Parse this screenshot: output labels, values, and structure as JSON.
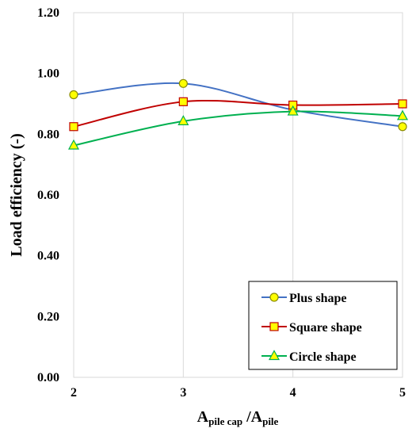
{
  "chart_data": {
    "type": "line",
    "x": [
      2,
      3,
      4,
      5
    ],
    "series": [
      {
        "name": "Plus shape",
        "values": [
          0.93,
          0.967,
          0.88,
          0.825
        ],
        "line_color": "#4472C4",
        "marker": "circle",
        "marker_fill": "#FFFF00",
        "marker_stroke": "#8C8C00"
      },
      {
        "name": "Square shape",
        "values": [
          0.825,
          0.907,
          0.896,
          0.9
        ],
        "line_color": "#C00000",
        "marker": "square",
        "marker_fill": "#FFFF00",
        "marker_stroke": "#C00000"
      },
      {
        "name": "Circle shape",
        "values": [
          0.763,
          0.843,
          0.875,
          0.86
        ],
        "line_color": "#00B050",
        "marker": "triangle",
        "marker_fill": "#FFFF00",
        "marker_stroke": "#00B050"
      }
    ],
    "xlabel": {
      "main1": "A",
      "sub1": "pile cap",
      "sep": " /A",
      "sub2": "pile"
    },
    "ylabel": "Load efficiency (-)",
    "ylim": [
      0,
      1.2
    ],
    "xlim": [
      2,
      5
    ],
    "yticks": [
      "0.00",
      "0.20",
      "0.40",
      "0.60",
      "0.80",
      "1.00",
      "1.20"
    ],
    "xticks": [
      "2",
      "3",
      "4",
      "5"
    ],
    "grid": "vertical",
    "legend_position": "bottom-right"
  }
}
